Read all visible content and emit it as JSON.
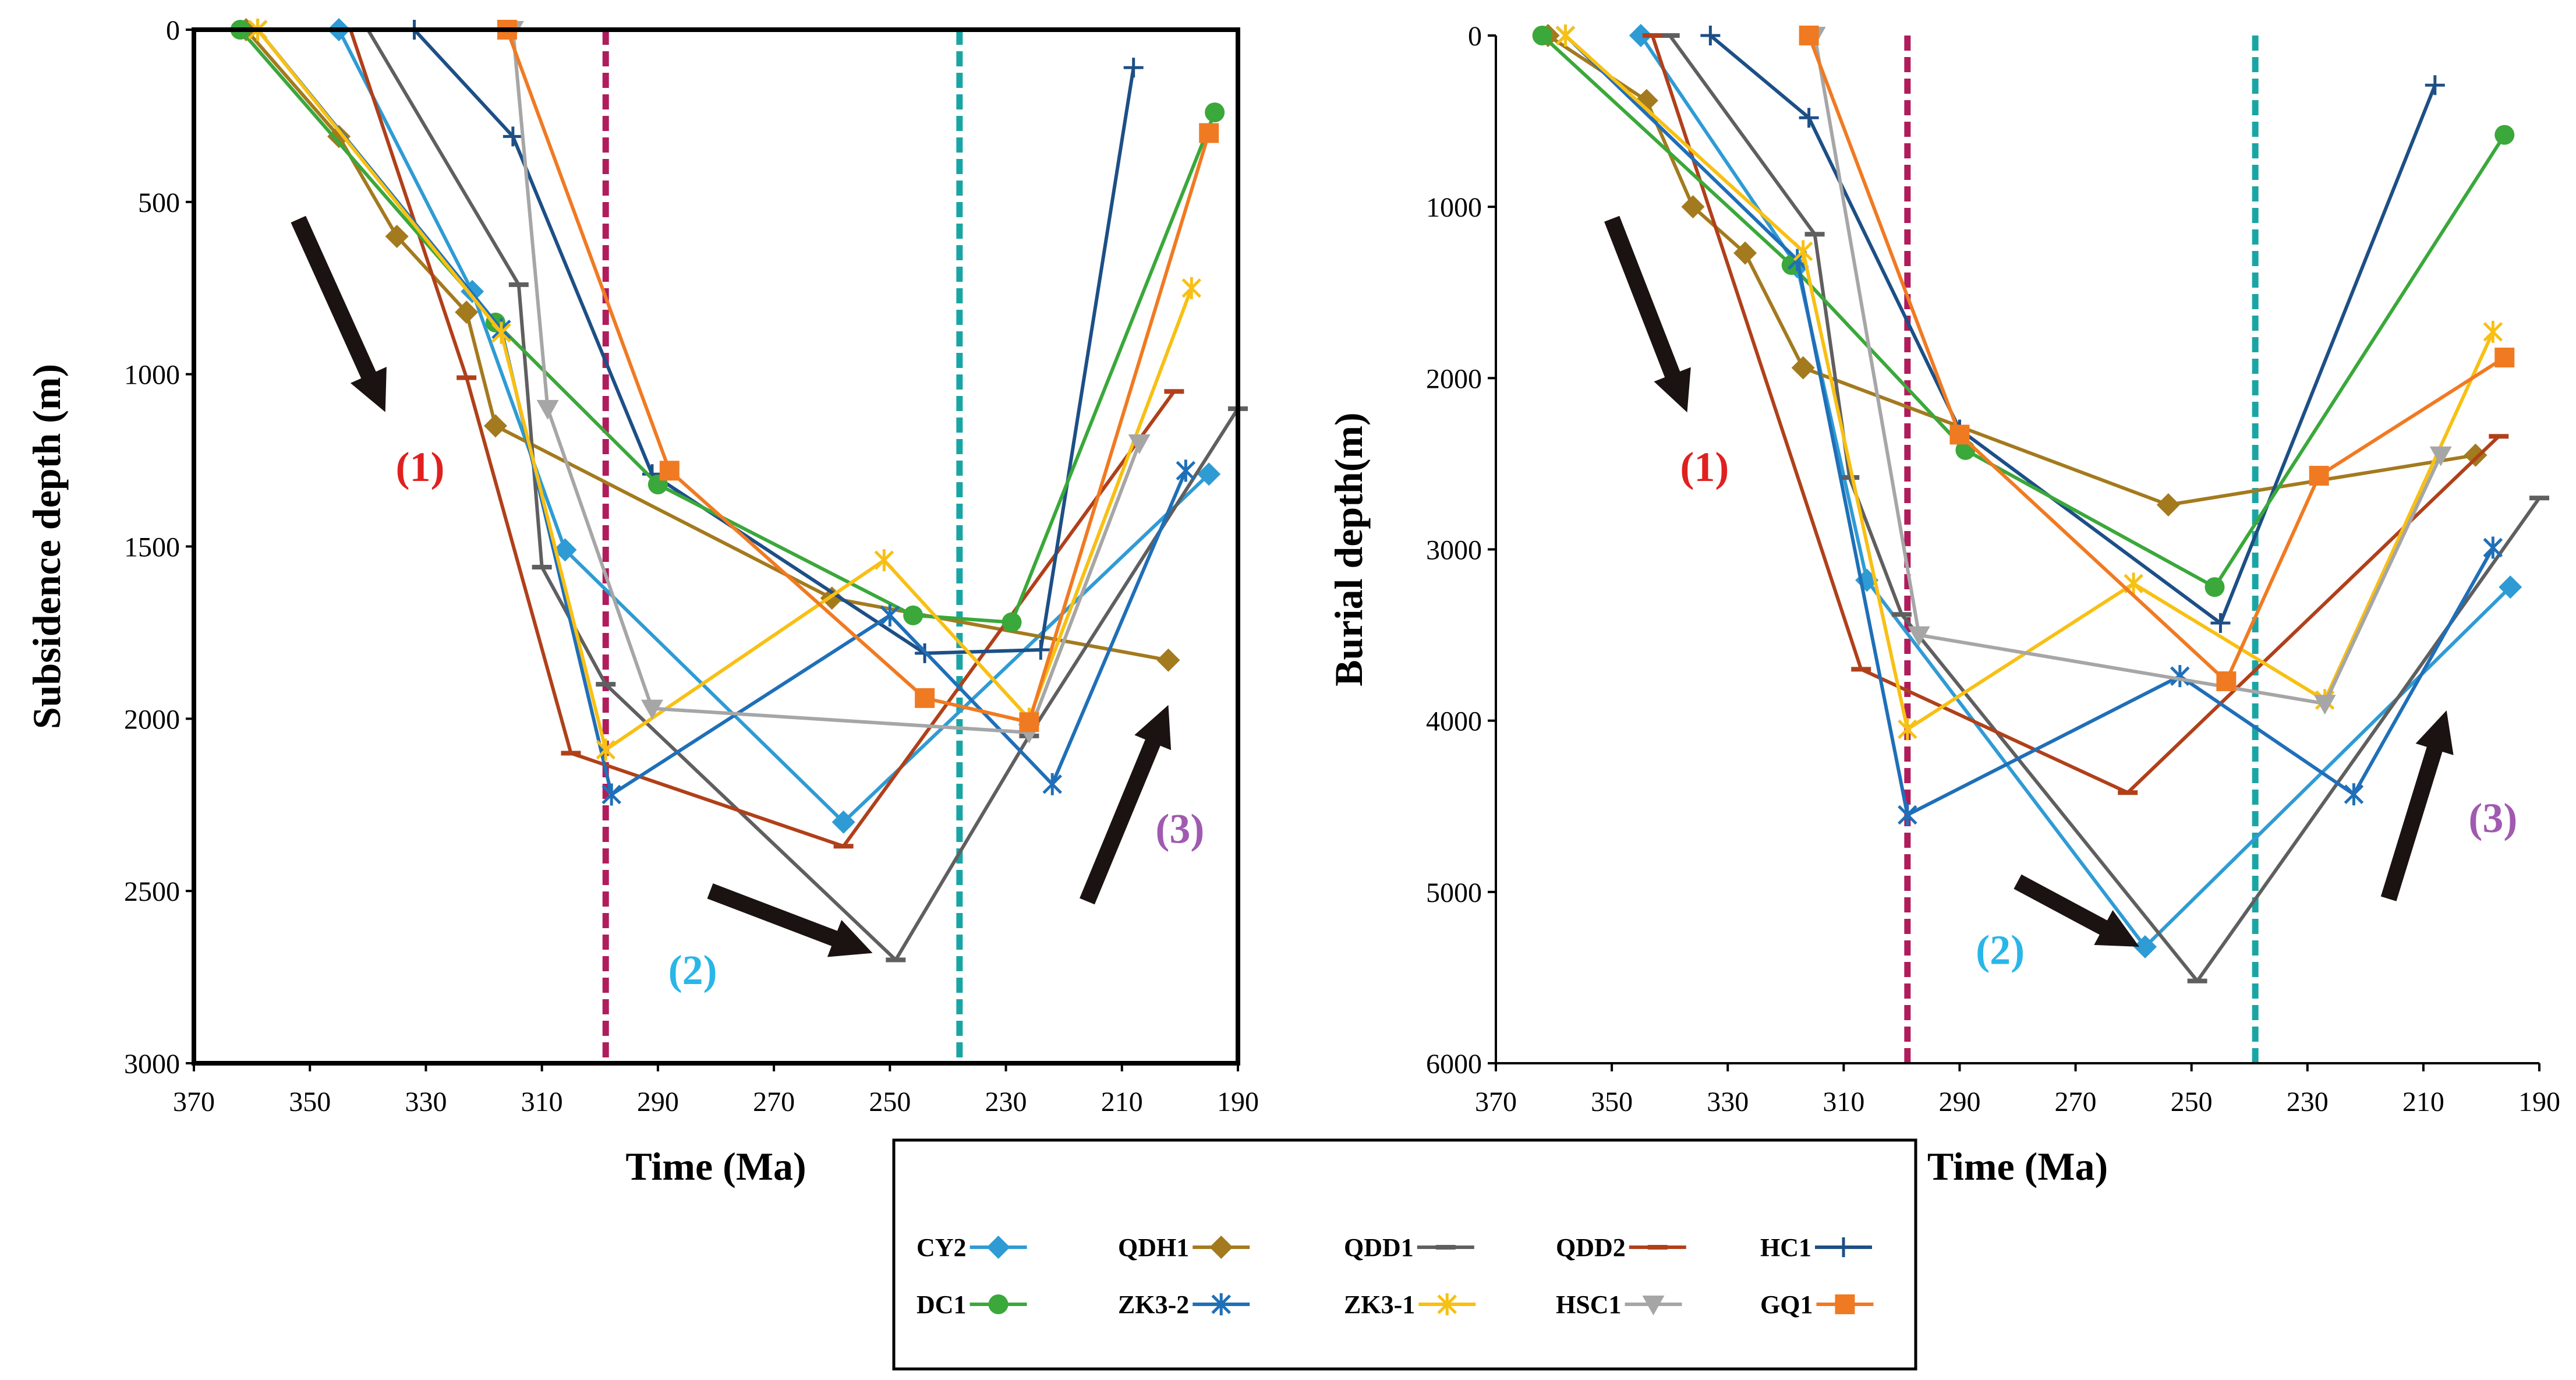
{
  "chart_data": [
    {
      "type": "line",
      "xlabel": "Time (Ma)",
      "ylabel": "Subsidence depth (m)",
      "xlim": [
        370,
        190
      ],
      "ylim": [
        0,
        3000
      ],
      "x_ticks": [
        "370",
        "350",
        "330",
        "310",
        "290",
        "270",
        "250",
        "230",
        "210",
        "190"
      ],
      "y_ticks": [
        "0",
        "500",
        "1000",
        "1500",
        "2000",
        "2500",
        "3000"
      ],
      "reference_lines": [
        {
          "x": 299,
          "color": "#b01c5c"
        },
        {
          "x": 238,
          "color": "#1aa5a5"
        }
      ],
      "annotations": [
        {
          "text": "(1)",
          "x": 331,
          "y": 1310,
          "color": "#e02020"
        },
        {
          "text": "(2)",
          "x": 284,
          "y": 2770,
          "color": "#29b6e8"
        },
        {
          "text": "(3)",
          "x": 200,
          "y": 2360,
          "color": "#a05ab0"
        }
      ],
      "arrows": [
        {
          "from": [
            352,
            550
          ],
          "to": [
            337,
            1110
          ]
        },
        {
          "from": [
            281,
            2500
          ],
          "to": [
            253,
            2680
          ]
        },
        {
          "from": [
            216,
            2530
          ],
          "to": [
            202,
            1960
          ]
        }
      ],
      "series": [
        {
          "name": "CY2",
          "x": [
            345,
            322,
            306,
            258,
            195
          ],
          "y": [
            0,
            760,
            1510,
            2300,
            1290
          ]
        },
        {
          "name": "QDH1",
          "x": [
            361,
            345,
            335,
            323,
            318,
            260,
            202
          ],
          "y": [
            0,
            310,
            600,
            820,
            1150,
            1650,
            1830
          ]
        },
        {
          "name": "QDD1",
          "x": [
            340,
            314,
            310,
            299,
            249,
            226,
            190
          ],
          "y": [
            0,
            740,
            1560,
            1900,
            2700,
            2050,
            1100
          ]
        },
        {
          "name": "QDD2",
          "x": [
            343,
            323,
            305,
            258,
            201
          ],
          "y": [
            0,
            1010,
            2100,
            2370,
            1050
          ]
        },
        {
          "name": "HC1",
          "x": [
            332,
            315,
            291,
            244,
            224,
            208
          ],
          "y": [
            0,
            310,
            1290,
            1810,
            1800,
            110
          ]
        },
        {
          "name": "DC1",
          "x": [
            362,
            318,
            290,
            246,
            229,
            194
          ],
          "y": [
            0,
            850,
            1320,
            1700,
            1720,
            240
          ]
        },
        {
          "name": "ZK3-2",
          "x": [
            359,
            317,
            298,
            250,
            222,
            199
          ],
          "y": [
            0,
            870,
            2220,
            1700,
            2190,
            1280
          ]
        },
        {
          "name": "ZK3-1",
          "x": [
            359,
            317,
            299,
            251,
            226,
            198
          ],
          "y": [
            0,
            880,
            2090,
            1540,
            2000,
            750
          ]
        },
        {
          "name": "HSC1",
          "x": [
            315,
            309,
            291,
            226,
            207
          ],
          "y": [
            0,
            1100,
            1970,
            2040,
            1200
          ]
        },
        {
          "name": "GQ1",
          "x": [
            316,
            288,
            244,
            226,
            195
          ],
          "y": [
            0,
            1280,
            1940,
            2010,
            300
          ]
        }
      ]
    },
    {
      "type": "line",
      "xlabel": "Time (Ma)",
      "ylabel": "Burial depth(m)",
      "xlim": [
        370,
        190
      ],
      "ylim": [
        0,
        6000
      ],
      "x_ticks": [
        "370",
        "350",
        "330",
        "310",
        "290",
        "270",
        "250",
        "230",
        "210",
        "190"
      ],
      "y_ticks": [
        "0",
        "1000",
        "2000",
        "3000",
        "4000",
        "5000",
        "6000"
      ],
      "reference_lines": [
        {
          "x": 299,
          "color": "#b01c5c"
        },
        {
          "x": 239,
          "color": "#1aa5a5"
        }
      ],
      "annotations": [
        {
          "text": "(1)",
          "x": 334,
          "y": 2600,
          "color": "#e02020"
        },
        {
          "text": "(2)",
          "x": 283,
          "y": 5420,
          "color": "#29b6e8"
        },
        {
          "text": "(3)",
          "x": 198,
          "y": 4650,
          "color": "#a05ab0"
        }
      ],
      "arrows": [
        {
          "from": [
            350,
            1070
          ],
          "to": [
            337,
            2200
          ]
        },
        {
          "from": [
            280,
            4940
          ],
          "to": [
            259,
            5320
          ]
        },
        {
          "from": [
            216,
            5040
          ],
          "to": [
            206,
            3940
          ]
        }
      ],
      "series": [
        {
          "name": "CY2",
          "x": [
            345,
            318,
            306,
            258,
            195
          ],
          "y": [
            0,
            1350,
            3180,
            5320,
            3220
          ]
        },
        {
          "name": "QDH1",
          "x": [
            361,
            344,
            336,
            327,
            317,
            254,
            201
          ],
          "y": [
            0,
            380,
            1000,
            1270,
            1940,
            2740,
            2450
          ]
        },
        {
          "name": "QDD1",
          "x": [
            340,
            315,
            309,
            300,
            249,
            190
          ],
          "y": [
            0,
            1160,
            2580,
            3380,
            5520,
            2700
          ]
        },
        {
          "name": "QDD2",
          "x": [
            343,
            307,
            261,
            197
          ],
          "y": [
            0,
            3700,
            4420,
            2340
          ]
        },
        {
          "name": "HC1",
          "x": [
            333,
            316,
            290,
            245,
            208
          ],
          "y": [
            0,
            480,
            2300,
            3430,
            290
          ]
        },
        {
          "name": "DC1",
          "x": [
            362,
            319,
            289,
            246,
            196
          ],
          "y": [
            0,
            1340,
            2420,
            3220,
            580
          ]
        },
        {
          "name": "ZK3-2",
          "x": [
            358,
            318,
            299,
            252,
            222,
            198
          ],
          "y": [
            0,
            1310,
            4550,
            3740,
            4430,
            2990
          ]
        },
        {
          "name": "ZK3-1",
          "x": [
            358,
            317,
            299,
            260,
            227,
            198
          ],
          "y": [
            0,
            1260,
            4050,
            3200,
            3880,
            1730
          ]
        },
        {
          "name": "HSC1",
          "x": [
            315,
            297,
            227,
            207
          ],
          "y": [
            0,
            3500,
            3900,
            2450
          ]
        },
        {
          "name": "GQ1",
          "x": [
            316,
            290,
            244,
            228,
            196
          ],
          "y": [
            0,
            2330,
            3770,
            2570,
            1880
          ]
        }
      ]
    }
  ],
  "legend": {
    "items": [
      {
        "name": "CY2",
        "color": "#2f9bd4",
        "marker": "diamond"
      },
      {
        "name": "QDH1",
        "color": "#a37a1e",
        "marker": "diamond"
      },
      {
        "name": "QDD1",
        "color": "#5f5f5f",
        "marker": "dash"
      },
      {
        "name": "QDD2",
        "color": "#b0401a",
        "marker": "dash"
      },
      {
        "name": "HC1",
        "color": "#1d4f86",
        "marker": "plus"
      },
      {
        "name": "DC1",
        "color": "#3aa83a",
        "marker": "circle"
      },
      {
        "name": "ZK3-2",
        "color": "#1f6fb8",
        "marker": "star"
      },
      {
        "name": "ZK3-1",
        "color": "#f8c014",
        "marker": "star"
      },
      {
        "name": "HSC1",
        "color": "#a6a6a6",
        "marker": "triangle-down"
      },
      {
        "name": "GQ1",
        "color": "#f07a22",
        "marker": "square"
      }
    ]
  },
  "arrow_color": "#1b1311"
}
